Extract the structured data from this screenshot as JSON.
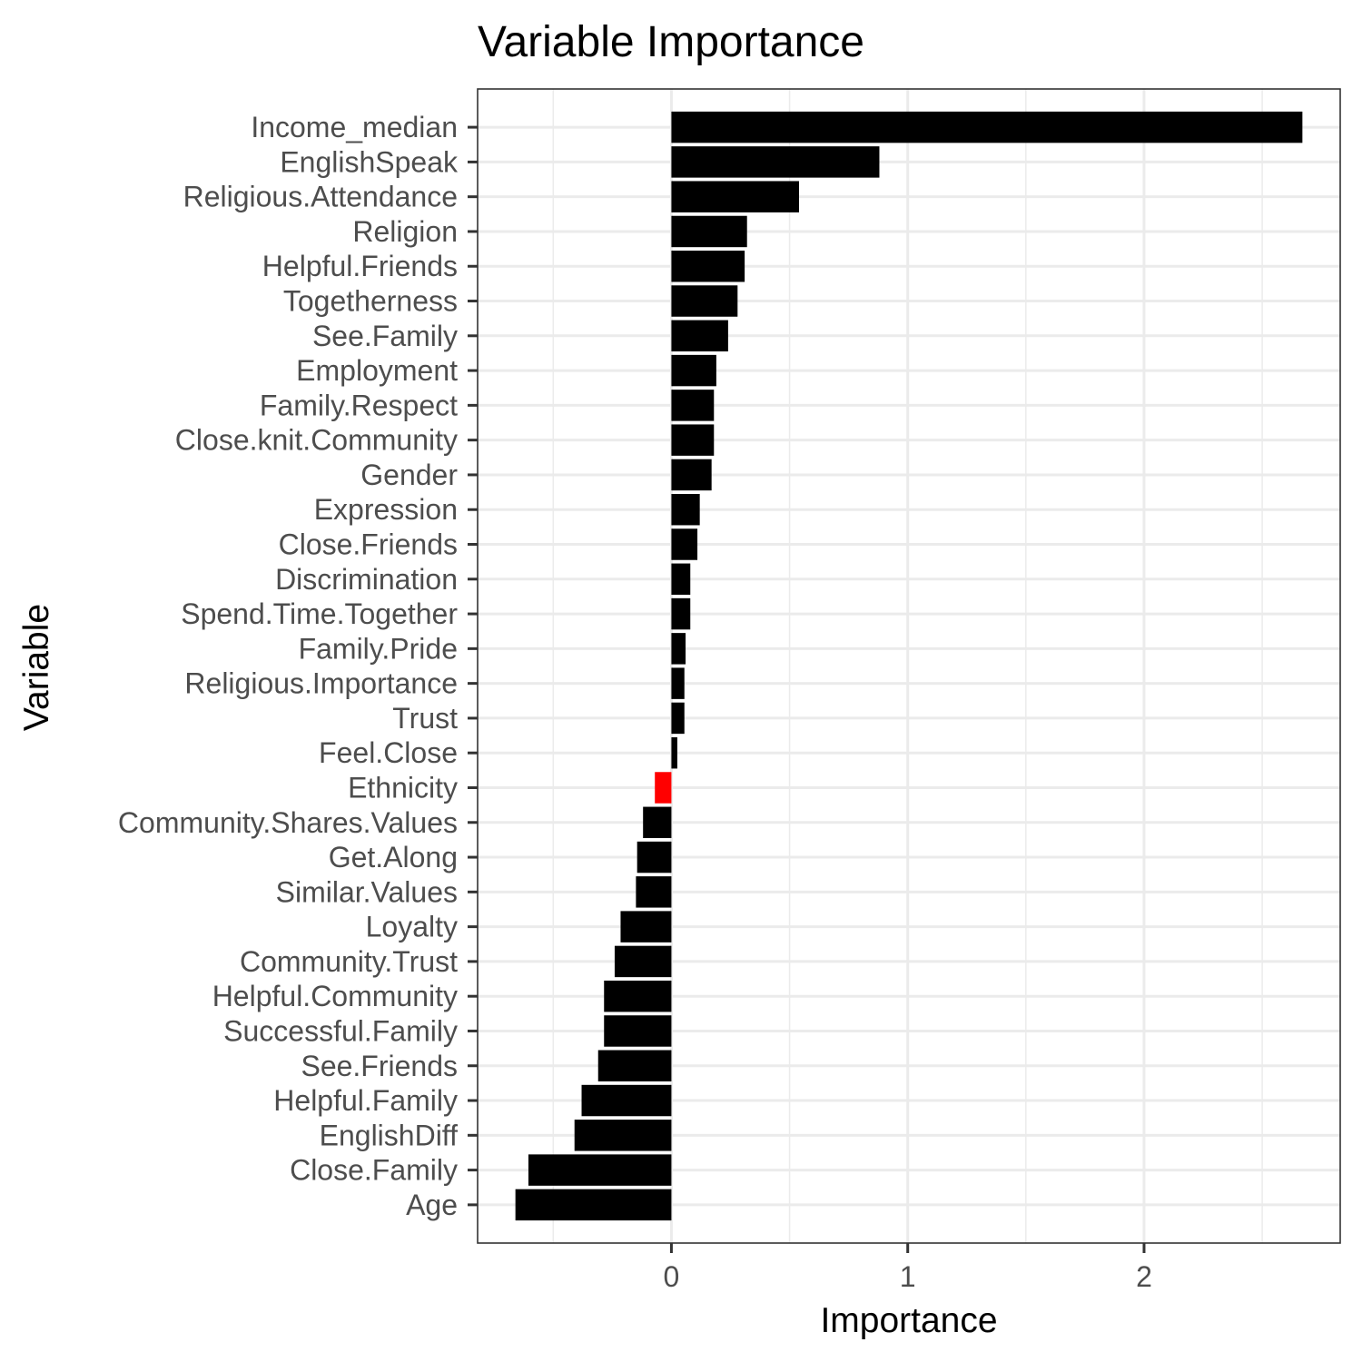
{
  "chart_data": {
    "type": "bar",
    "orientation": "horizontal",
    "title": "Variable Importance",
    "xlabel": "Importance",
    "ylabel": "Variable",
    "xlim": [
      -0.82,
      2.83
    ],
    "xticks": [
      0,
      1,
      2
    ],
    "grid": true,
    "legend": "none",
    "colors": {
      "default_bar": "#000000",
      "highlight_bar": "#ff0000",
      "panel_border": "#333333",
      "grid": "#ebebeb",
      "tick_text": "#4d4d4d"
    },
    "categories": [
      "Income_median",
      "EnglishSpeak",
      "Religious.Attendance",
      "Religion",
      "Helpful.Friends",
      "Togetherness",
      "See.Family",
      "Employment",
      "Family.Respect",
      "Close.knit.Community",
      "Gender",
      "Expression",
      "Close.Friends",
      "Discrimination",
      "Spend.Time.Together",
      "Family.Pride",
      "Religious.Importance",
      "Trust",
      "Feel.Close",
      "Ethnicity",
      "Community.Shares.Values",
      "Get.Along",
      "Similar.Values",
      "Loyalty",
      "Community.Trust",
      "Helpful.Community",
      "Successful.Family",
      "See.Friends",
      "Helpful.Family",
      "EnglishDiff",
      "Close.Family",
      "Age"
    ],
    "values": [
      2.67,
      0.88,
      0.54,
      0.32,
      0.31,
      0.28,
      0.24,
      0.19,
      0.18,
      0.18,
      0.17,
      0.12,
      0.11,
      0.08,
      0.08,
      0.06,
      0.055,
      0.055,
      0.025,
      -0.07,
      -0.12,
      -0.145,
      -0.15,
      -0.215,
      -0.24,
      -0.285,
      -0.285,
      -0.31,
      -0.38,
      -0.41,
      -0.605,
      -0.66
    ],
    "highlight": [
      "Ethnicity"
    ]
  }
}
